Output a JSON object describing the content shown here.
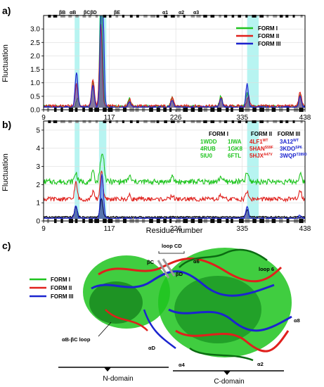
{
  "panels": {
    "a": "a)",
    "b": "b)",
    "c": "c)"
  },
  "secondary_structure": [
    "βB",
    "αB",
    "βCβD",
    "βE",
    "α1",
    "α2",
    "α3"
  ],
  "chart_data": [
    {
      "type": "line",
      "panel": "a",
      "ylabel": "Fluctuation",
      "xlabel": "",
      "xlim": [
        9,
        438
      ],
      "ylim": [
        0,
        3.5
      ],
      "xticks": [
        9,
        117,
        226,
        335,
        438
      ],
      "yticks": [
        "0.0",
        "0.5",
        "1.0",
        "1.5",
        "2.0",
        "2.5",
        "3.0"
      ],
      "highlights": [
        [
          60,
          68
        ],
        [
          100,
          112
        ],
        [
          343,
          362
        ]
      ],
      "legend": "top-right",
      "series": [
        {
          "name": "FORM I",
          "color": "#1fc41f",
          "baseline": 0.1,
          "amp": 0.05,
          "peaks": [
            [
              65,
              0.35
            ],
            [
              90,
              0.9
            ],
            [
              103,
              2.2
            ],
            [
              104,
              2.3
            ],
            [
              150,
              0.3
            ],
            [
              220,
              0.35
            ],
            [
              300,
              0.4
            ],
            [
              343,
              0.5
            ],
            [
              430,
              0.4
            ]
          ]
        },
        {
          "name": "FORM II",
          "color": "#e0201c",
          "baseline": 0.12,
          "amp": 0.05,
          "peaks": [
            [
              63,
              0.8
            ],
            [
              90,
              1.0
            ],
            [
              103,
              3.0
            ],
            [
              150,
              0.25
            ],
            [
              220,
              0.3
            ],
            [
              300,
              0.3
            ],
            [
              345,
              0.35
            ],
            [
              430,
              0.5
            ]
          ]
        },
        {
          "name": "FORM III",
          "color": "#1b24cf",
          "baseline": 0.08,
          "amp": 0.04,
          "peaks": [
            [
              63,
              1.3
            ],
            [
              90,
              0.8
            ],
            [
              104,
              3.5
            ],
            [
              106,
              3.1
            ],
            [
              150,
              0.2
            ],
            [
              220,
              0.25
            ],
            [
              300,
              0.3
            ],
            [
              343,
              0.85
            ],
            [
              430,
              0.4
            ]
          ]
        }
      ]
    },
    {
      "type": "line",
      "panel": "b",
      "ylabel": "Fluctuation",
      "xlabel": "Residue number",
      "xlim": [
        9,
        438
      ],
      "ylim": [
        0,
        5.5
      ],
      "xticks": [
        9,
        117,
        226,
        335,
        438
      ],
      "yticks": [
        "0",
        "1",
        "2",
        "3",
        "4",
        "5"
      ],
      "highlights": [
        [
          60,
          68
        ],
        [
          100,
          112
        ],
        [
          343,
          362
        ]
      ],
      "legend_headers": [
        "FORM I",
        "FORM II",
        "FORM III"
      ],
      "legend_entries": [
        {
          "col": 0,
          "row": 0,
          "text": "1WDD",
          "color": "#1fc41f",
          "sup": ""
        },
        {
          "col": 0,
          "row": 1,
          "text": "4RUB",
          "color": "#1fc41f",
          "sup": ""
        },
        {
          "col": 0,
          "row": 2,
          "text": "5IU0",
          "color": "#1fc41f",
          "sup": ""
        },
        {
          "col": 1,
          "row": 0,
          "text": "1IWA",
          "color": "#1fc41f",
          "sup": ""
        },
        {
          "col": 1,
          "row": 1,
          "text": "1GK8",
          "color": "#1fc41f",
          "sup": ""
        },
        {
          "col": 1,
          "row": 2,
          "text": "6FTL",
          "color": "#1fc41f",
          "sup": ""
        },
        {
          "col": 2,
          "row": 0,
          "text": "4LF1",
          "color": "#e0201c",
          "sup": "WT"
        },
        {
          "col": 2,
          "row": 1,
          "text": "5HAN",
          "color": "#e0201c",
          "sup": "S59F"
        },
        {
          "col": 2,
          "row": 2,
          "text": "5HJX",
          "color": "#e0201c",
          "sup": "A47V"
        },
        {
          "col": 3,
          "row": 0,
          "text": "3A12",
          "color": "#1b24cf",
          "sup": "WT"
        },
        {
          "col": 3,
          "row": 1,
          "text": "3KDO",
          "color": "#1b24cf",
          "sup": "SP6"
        },
        {
          "col": 3,
          "row": 2,
          "text": "3WQP",
          "color": "#1b24cf",
          "sup": "T289D"
        }
      ],
      "series": [
        {
          "name": "",
          "color": "#1fc41f",
          "baseline": 2.1,
          "amp": 0.15,
          "peaks": [
            [
              62,
              0.5
            ],
            [
              90,
              0.5
            ],
            [
              103,
              1.0
            ],
            [
              107,
              1.2
            ],
            [
              150,
              0.3
            ],
            [
              220,
              0.25
            ],
            [
              300,
              0.3
            ],
            [
              343,
              0.5
            ],
            [
              430,
              0.4
            ]
          ]
        },
        {
          "name": "",
          "color": "#e0201c",
          "baseline": 1.15,
          "amp": 0.12,
          "peaks": [
            [
              62,
              0.9
            ],
            [
              90,
              0.4
            ],
            [
              104,
              1.6
            ],
            [
              150,
              0.2
            ],
            [
              220,
              0.2
            ],
            [
              300,
              0.2
            ],
            [
              343,
              0.4
            ],
            [
              430,
              0.5
            ]
          ]
        },
        {
          "name": "",
          "color": "#000000",
          "baseline": 0.2,
          "amp": 0.04,
          "peaks": [
            [
              62,
              0.6
            ],
            [
              104,
              1.0
            ],
            [
              343,
              0.4
            ]
          ]
        },
        {
          "name": "",
          "color": "#1b24cf",
          "baseline": 0.12,
          "amp": 0.05,
          "peaks": [
            [
              62,
              0.7
            ],
            [
              104,
              1.5
            ],
            [
              106,
              1.2
            ],
            [
              343,
              0.7
            ],
            [
              430,
              0.2
            ]
          ]
        }
      ]
    }
  ],
  "structure_panel": {
    "legend": [
      {
        "name": "FORM I",
        "color": "#1fc41f"
      },
      {
        "name": "FORM II",
        "color": "#e0201c"
      },
      {
        "name": "FORM III",
        "color": "#1b24cf"
      }
    ],
    "annotations": [
      "loop CD",
      "βC",
      "βD",
      "α6",
      "loop 6",
      "α8",
      "αB-βC loop",
      "αD",
      "α4",
      "α2"
    ],
    "domains": [
      "N-domain",
      "C-domain"
    ]
  }
}
